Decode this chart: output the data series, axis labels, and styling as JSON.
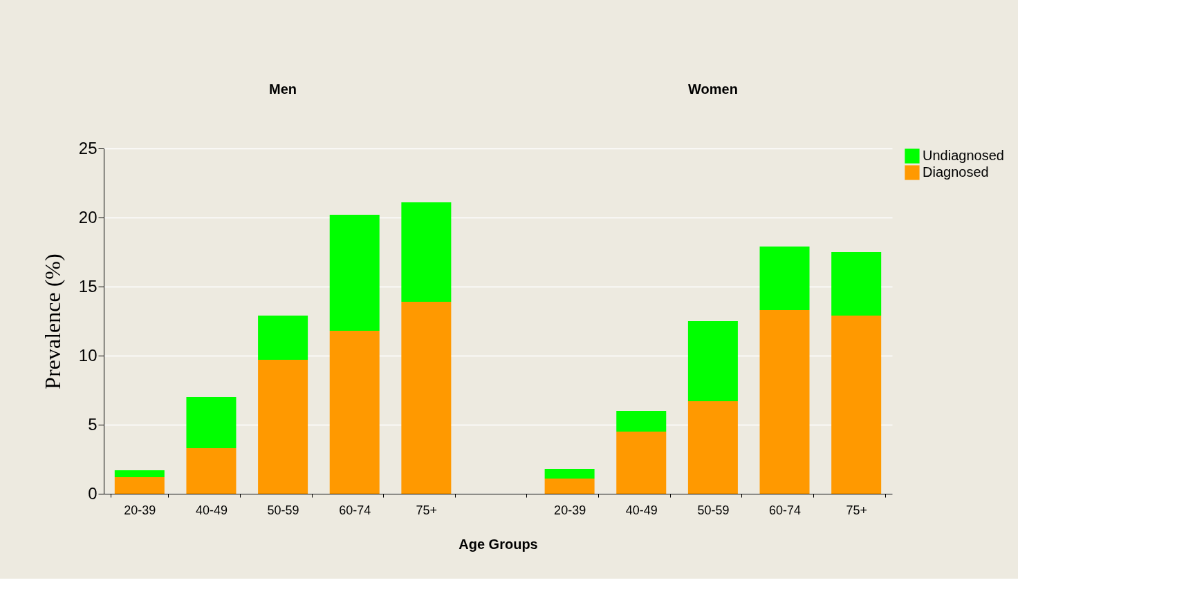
{
  "chart_data": {
    "type": "bar",
    "stacked": true,
    "xlabel": "Age Groups",
    "ylabel": "Prevalence (%)",
    "categories": [
      "20-39",
      "40-49",
      "50-59",
      "60-74",
      "75+",
      null,
      "20-39",
      "40-49",
      "50-59",
      "60-74",
      "75+"
    ],
    "series": [
      {
        "name": "Diagnosed",
        "color": "#ff9900",
        "values": [
          1.2,
          3.3,
          9.7,
          11.8,
          13.9,
          null,
          1.1,
          4.5,
          6.7,
          13.3,
          12.9
        ]
      },
      {
        "name": "Undiagnosed",
        "color": "#00ff00",
        "values": [
          0.5,
          3.7,
          3.2,
          8.4,
          7.2,
          null,
          0.7,
          1.5,
          5.8,
          4.6,
          4.6
        ]
      }
    ],
    "annotations": [
      "Men",
      "Women"
    ],
    "ylim": [
      0,
      25
    ],
    "yticks": [
      0,
      5,
      10,
      15,
      20,
      25
    ],
    "grid": "y",
    "legend": "right"
  }
}
